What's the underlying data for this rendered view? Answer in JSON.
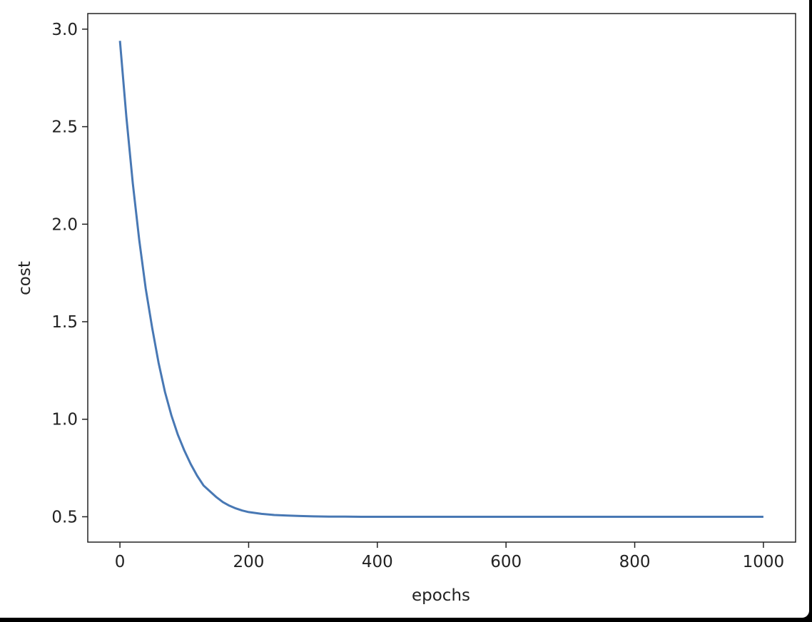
{
  "chart_data": {
    "type": "line",
    "title": "",
    "xlabel": "epochs",
    "ylabel": "cost",
    "xlim": [
      -50,
      1050
    ],
    "ylim": [
      0.37,
      3.08
    ],
    "xticks": [
      0,
      200,
      400,
      600,
      800,
      1000
    ],
    "xtick_labels": [
      "0",
      "200",
      "400",
      "600",
      "800",
      "1000"
    ],
    "yticks": [
      0.5,
      1.0,
      1.5,
      2.0,
      2.5,
      3.0
    ],
    "ytick_labels": [
      "0.5",
      "1.0",
      "1.5",
      "2.0",
      "2.5",
      "3.0"
    ],
    "grid": false,
    "line_color": "#4878b4",
    "series": [
      {
        "x": [
          0,
          10,
          20,
          30,
          40,
          50,
          60,
          70,
          80,
          90,
          100,
          110,
          120,
          130,
          140,
          150,
          160,
          170,
          180,
          190,
          200,
          220,
          240,
          260,
          280,
          300,
          325,
          350,
          375,
          400,
          450,
          500,
          550,
          600,
          650,
          700,
          750,
          800,
          850,
          900,
          950,
          1000
        ],
        "values": [
          2.94,
          2.55,
          2.21,
          1.92,
          1.67,
          1.47,
          1.29,
          1.14,
          1.02,
          0.92,
          0.84,
          0.77,
          0.71,
          0.66,
          0.63,
          0.6,
          0.575,
          0.557,
          0.543,
          0.532,
          0.524,
          0.515,
          0.509,
          0.506,
          0.504,
          0.502,
          0.501,
          0.501,
          0.5,
          0.5,
          0.5,
          0.5,
          0.5,
          0.5,
          0.5,
          0.5,
          0.5,
          0.5,
          0.5,
          0.5,
          0.5,
          0.5
        ]
      }
    ]
  }
}
